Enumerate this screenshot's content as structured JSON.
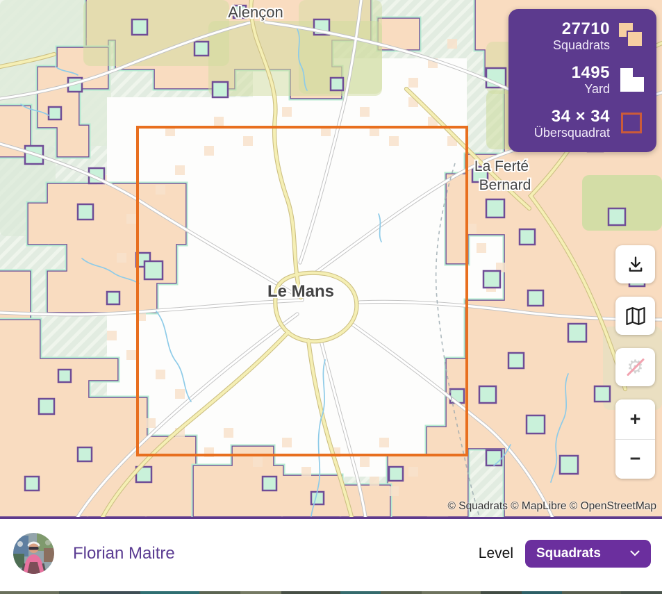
{
  "map": {
    "labels": {
      "alencon": "Alençon",
      "laferte_line1": "La Ferté",
      "laferte_line2": "Bernard",
      "lemans": "Le Mans"
    },
    "attribution": "© Squadrats © MapLibre © OpenStreetMap"
  },
  "stats_panel": {
    "rows": [
      {
        "value": "27710",
        "label": "Squadrats",
        "icon": "squadrats-icon"
      },
      {
        "value": "1495",
        "label": "Yard",
        "icon": "yard-icon"
      },
      {
        "value": "34 × 34",
        "label": "Übersquadrat",
        "icon": "ubersquadrat-icon"
      }
    ]
  },
  "controls": {
    "zoom_in": "+",
    "zoom_out": "−",
    "icons": [
      "download-icon",
      "map-icon",
      "squadrats-hidden-icon",
      "zoom-in",
      "zoom-out"
    ]
  },
  "footer": {
    "user_name": "Florian Maitre",
    "level_label": "Level",
    "level_value": "Squadrats"
  },
  "colors": {
    "panel_purple": "#5c3a8e",
    "dropdown_purple": "#6b2f9e",
    "ubersquadrat_orange": "#e86f1f",
    "visited_peach": "#f9dcc0",
    "border_purple": "#6f4c96",
    "glow_mint": "#b4ebd1"
  }
}
